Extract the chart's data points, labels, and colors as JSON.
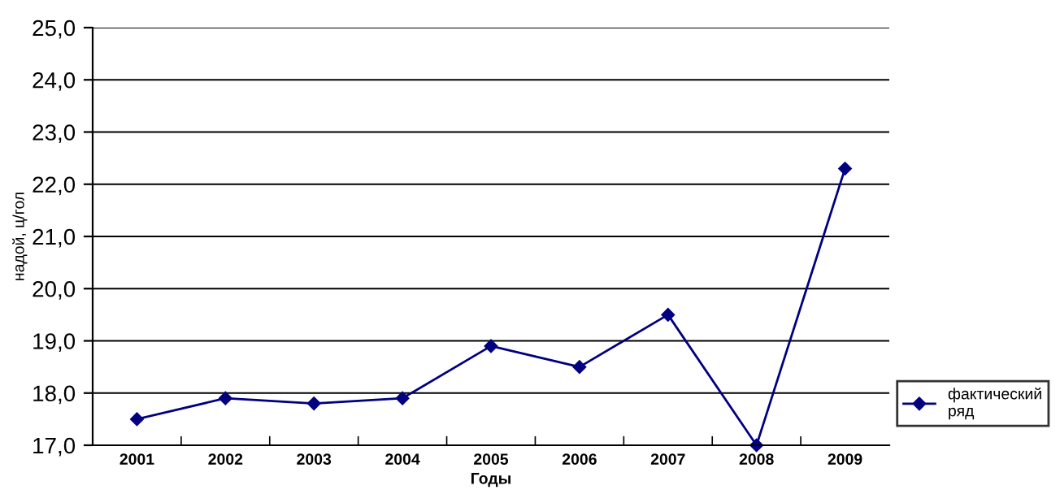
{
  "chart_data": {
    "type": "line",
    "xlabel": "Годы",
    "ylabel": "надой, ц/гол",
    "categories": [
      "2001",
      "2002",
      "2003",
      "2004",
      "2005",
      "2006",
      "2007",
      "2008",
      "2009"
    ],
    "series": [
      {
        "name": "фактический ряд",
        "color": "#000080",
        "values": [
          17.5,
          17.9,
          17.8,
          17.9,
          18.9,
          18.5,
          19.5,
          17.0,
          22.3
        ]
      }
    ],
    "ylim": [
      17,
      25
    ],
    "yticks": [
      {
        "value": 17,
        "label": "17,0"
      },
      {
        "value": 18,
        "label": "18,0"
      },
      {
        "value": 19,
        "label": "19,0"
      },
      {
        "value": 20,
        "label": "20,0"
      },
      {
        "value": 21,
        "label": "21,0"
      },
      {
        "value": 22,
        "label": "22,0"
      },
      {
        "value": 23,
        "label": "23,0"
      },
      {
        "value": 24,
        "label": "24,0"
      },
      {
        "value": 25,
        "label": "25,0"
      }
    ],
    "grid": "y",
    "legend": "right",
    "marker": "diamond",
    "line_style": "solid"
  }
}
